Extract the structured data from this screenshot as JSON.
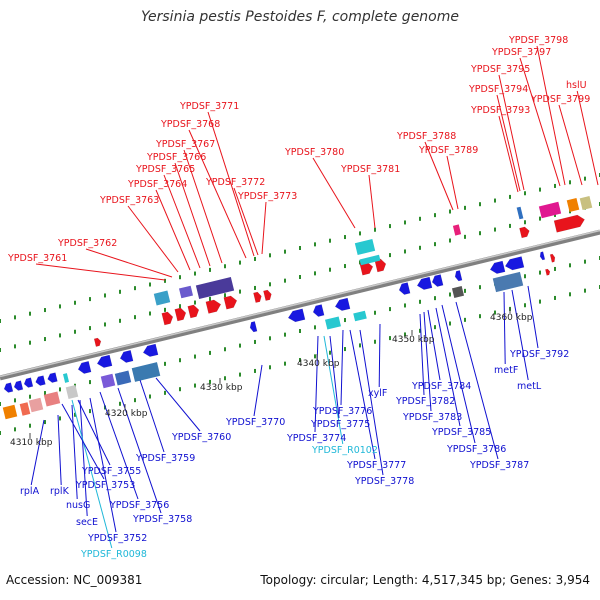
{
  "title": "Yersinia pestis Pestoides F, complete genome",
  "footer": {
    "accession": "Accession: NC_009381",
    "summary": "Topology: circular; Length: 4,517,345 bp; Genes: 3,954"
  },
  "ticks": [
    "4310 kbp",
    "4320 kbp",
    "4330 kbp",
    "4340 kbp",
    "4350 kbp",
    "4360 kbp"
  ],
  "upper_labels": [
    "YPDSF_3761",
    "YPDSF_3762",
    "YPDSF_3763",
    "YPDSF_3764",
    "YPDSF_3765",
    "YPDSF_3766",
    "YPDSF_3767",
    "YPDSF_3768",
    "YPDSF_3771",
    "YPDSF_3772",
    "YPDSF_3773",
    "YPDSF_3780",
    "YPDSF_3781",
    "YPDSF_3788",
    "YPDSF_3789",
    "YPDSF_3793",
    "YPDSF_3794",
    "YPDSF_3795",
    "YPDSF_3797",
    "YPDSF_3798",
    "YPDSF_3799",
    "hslU"
  ],
  "lower_labels": [
    "rplA",
    "rplK",
    "nusG",
    "secE",
    "YPDSF_3752",
    "YPDSF_R0098",
    "YPDSF_3753",
    "YPDSF_3755",
    "YPDSF_3756",
    "YPDSF_3758",
    "YPDSF_3759",
    "YPDSF_3760",
    "YPDSF_3770",
    "YPDSF_3774",
    "YPDSF_R0102",
    "YPDSF_3775",
    "YPDSF_3776",
    "YPDSF_3777",
    "YPDSF_3778",
    "xylF",
    "YPDSF_3782",
    "YPDSF_3783",
    "YPDSF_3784",
    "YPDSF_3785",
    "YPDSF_3786",
    "YPDSF_3787",
    "metF",
    "metL",
    "YPDSF_3792"
  ],
  "colors": {
    "upper_label": "#e8141c",
    "lower_label": "#1010d0",
    "rna_label": "#20b8d8",
    "backbone": "#8a8a8a",
    "tick_green": "#2a8a2a"
  }
}
